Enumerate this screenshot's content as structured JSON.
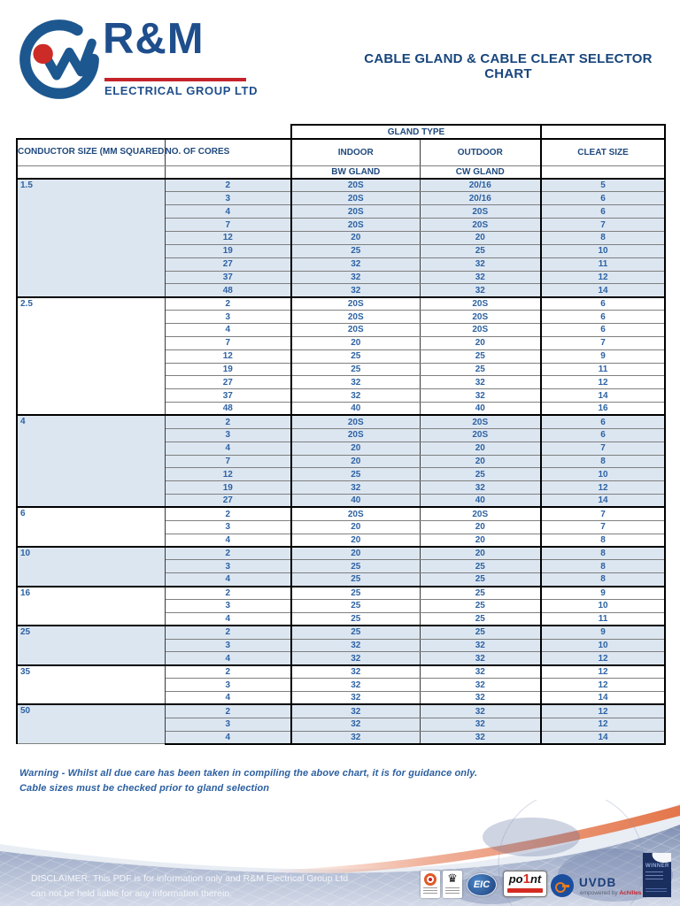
{
  "header": {
    "brand": "R&M",
    "brand_subtitle": "ELECTRICAL GROUP LTD",
    "title": "CABLE GLAND & CABLE CLEAT SELECTOR CHART"
  },
  "table": {
    "header": {
      "gland_type": "GLAND TYPE",
      "conductor_size": "CONDUCTOR SIZE (MM SQUARED)",
      "cores": "NO. OF CORES",
      "indoor": "INDOOR",
      "outdoor": "OUTDOOR",
      "cleat_size": "CLEAT SIZE",
      "bw_gland": "BW GLAND",
      "cw_gland": "CW GLAND"
    },
    "columns": [
      "Conductor size (mm squared)",
      "No. of cores",
      "Indoor BW gland",
      "Outdoor CW gland",
      "Cleat size"
    ],
    "sections": [
      {
        "size": "1.5",
        "shaded": true,
        "rows": [
          [
            "2",
            "20S",
            "20/16",
            "5"
          ],
          [
            "3",
            "20S",
            "20/16",
            "6"
          ],
          [
            "4",
            "20S",
            "20S",
            "6"
          ],
          [
            "7",
            "20S",
            "20S",
            "7"
          ],
          [
            "12",
            "20",
            "20",
            "8"
          ],
          [
            "19",
            "25",
            "25",
            "10"
          ],
          [
            "27",
            "32",
            "32",
            "11"
          ],
          [
            "37",
            "32",
            "32",
            "12"
          ],
          [
            "48",
            "32",
            "32",
            "14"
          ]
        ]
      },
      {
        "size": "2.5",
        "shaded": false,
        "rows": [
          [
            "2",
            "20S",
            "20S",
            "6"
          ],
          [
            "3",
            "20S",
            "20S",
            "6"
          ],
          [
            "4",
            "20S",
            "20S",
            "6"
          ],
          [
            "7",
            "20",
            "20",
            "7"
          ],
          [
            "12",
            "25",
            "25",
            "9"
          ],
          [
            "19",
            "25",
            "25",
            "11"
          ],
          [
            "27",
            "32",
            "32",
            "12"
          ],
          [
            "37",
            "32",
            "32",
            "14"
          ],
          [
            "48",
            "40",
            "40",
            "16"
          ]
        ]
      },
      {
        "size": "4",
        "shaded": true,
        "rows": [
          [
            "2",
            "20S",
            "20S",
            "6"
          ],
          [
            "3",
            "20S",
            "20S",
            "6"
          ],
          [
            "4",
            "20",
            "20",
            "7"
          ],
          [
            "7",
            "20",
            "20",
            "8"
          ],
          [
            "12",
            "25",
            "25",
            "10"
          ],
          [
            "19",
            "32",
            "32",
            "12"
          ],
          [
            "27",
            "40",
            "40",
            "14"
          ]
        ]
      },
      {
        "size": "6",
        "shaded": false,
        "rows": [
          [
            "2",
            "20S",
            "20S",
            "7"
          ],
          [
            "3",
            "20",
            "20",
            "7"
          ],
          [
            "4",
            "20",
            "20",
            "8"
          ]
        ]
      },
      {
        "size": "10",
        "shaded": true,
        "rows": [
          [
            "2",
            "20",
            "20",
            "8"
          ],
          [
            "3",
            "25",
            "25",
            "8"
          ],
          [
            "4",
            "25",
            "25",
            "8"
          ]
        ]
      },
      {
        "size": "16",
        "shaded": false,
        "rows": [
          [
            "2",
            "25",
            "25",
            "9"
          ],
          [
            "3",
            "25",
            "25",
            "10"
          ],
          [
            "4",
            "25",
            "25",
            "11"
          ]
        ]
      },
      {
        "size": "25",
        "shaded": true,
        "rows": [
          [
            "2",
            "25",
            "25",
            "9"
          ],
          [
            "3",
            "32",
            "32",
            "10"
          ],
          [
            "4",
            "32",
            "32",
            "12"
          ]
        ]
      },
      {
        "size": "35",
        "shaded": false,
        "rows": [
          [
            "2",
            "32",
            "32",
            "12"
          ],
          [
            "3",
            "32",
            "32",
            "12"
          ],
          [
            "4",
            "32",
            "32",
            "14"
          ]
        ]
      },
      {
        "size": "50",
        "shaded": true,
        "rows": [
          [
            "2",
            "32",
            "32",
            "12"
          ],
          [
            "3",
            "32",
            "32",
            "12"
          ],
          [
            "4",
            "32",
            "32",
            "14"
          ]
        ]
      }
    ]
  },
  "warning": {
    "line1": "Warning - Whilst all due care has been taken in compiling the above chart, it is for guidance only.",
    "line2": "Cable sizes must be checked prior to gland selection"
  },
  "footer": {
    "disclaimer_line1": "DISCLAIMER: This PDF is for information only and R&M Electrical Group Ltd",
    "disclaimer_line2": "can not be held liable for any information therein.",
    "logos": {
      "eic": "EIC",
      "point_pre": "po",
      "point_one": "1",
      "point_post": "nt",
      "uvdb": "UVDB",
      "uvdb_tagline_pre": "empowered by ",
      "uvdb_tagline_brand": "Achilles",
      "winner": "WINNER"
    }
  },
  "colors": {
    "brand_blue": "#1d578f",
    "brand_red": "#c5232b",
    "header_text": "#1f497d",
    "data_text": "#2d62a3",
    "row_shade": "#dce6f1",
    "footer_band_dark": "#7f8eb1",
    "footer_band_light": "#d3d9e7",
    "footer_orange": "#e4764a"
  }
}
